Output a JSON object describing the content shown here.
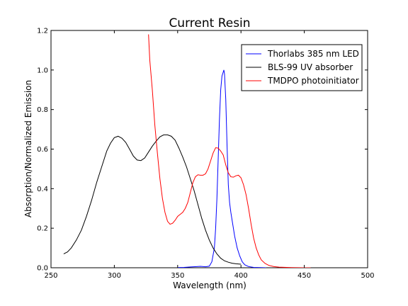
{
  "chart_data": {
    "type": "line",
    "title": "Current Resin",
    "xlabel": "Wavelength (nm)",
    "ylabel": "Absorption/Normalized Emission",
    "xlim": [
      250,
      500
    ],
    "ylim": [
      0,
      1.2
    ],
    "x_ticks": [
      250,
      300,
      350,
      400,
      450,
      500
    ],
    "y_ticks": [
      0.0,
      0.2,
      0.4,
      0.6,
      0.8,
      1.0,
      1.2
    ],
    "x_tick_labels": [
      "250",
      "300",
      "350",
      "400",
      "450",
      "500"
    ],
    "y_tick_labels": [
      "0.0",
      "0.2",
      "0.4",
      "0.6",
      "0.8",
      "1.0",
      "1.2"
    ],
    "grid": false,
    "legend_position": "top-right",
    "series": [
      {
        "name": "Thorlabs 385 nm LED",
        "color": "#0000ff",
        "points": [
          [
            350,
            0.001
          ],
          [
            355,
            0.002
          ],
          [
            360,
            0.004
          ],
          [
            365,
            0.006
          ],
          [
            368,
            0.007
          ],
          [
            372,
            0.005
          ],
          [
            375,
            0.008
          ],
          [
            377,
            0.03
          ],
          [
            379,
            0.1
          ],
          [
            380,
            0.2
          ],
          [
            381,
            0.35
          ],
          [
            382,
            0.55
          ],
          [
            383,
            0.75
          ],
          [
            384,
            0.9
          ],
          [
            385,
            0.97
          ],
          [
            386,
            0.99
          ],
          [
            386.5,
            1.0
          ],
          [
            387,
            0.98
          ],
          [
            388,
            0.85
          ],
          [
            389,
            0.62
          ],
          [
            390,
            0.42
          ],
          [
            391,
            0.33
          ],
          [
            392,
            0.28
          ],
          [
            393,
            0.24
          ],
          [
            395,
            0.16
          ],
          [
            397,
            0.1
          ],
          [
            399,
            0.06
          ],
          [
            401,
            0.03
          ],
          [
            403,
            0.015
          ],
          [
            406,
            0.006
          ],
          [
            410,
            0.002
          ],
          [
            415,
            0.001
          ],
          [
            420,
            0.0
          ]
        ]
      },
      {
        "name": "BLS-99 UV absorber",
        "color": "#000000",
        "points": [
          [
            260,
            0.07
          ],
          [
            263,
            0.08
          ],
          [
            266,
            0.1
          ],
          [
            270,
            0.14
          ],
          [
            274,
            0.19
          ],
          [
            278,
            0.26
          ],
          [
            282,
            0.34
          ],
          [
            286,
            0.43
          ],
          [
            290,
            0.51
          ],
          [
            294,
            0.59
          ],
          [
            297,
            0.63
          ],
          [
            300,
            0.658
          ],
          [
            303,
            0.665
          ],
          [
            306,
            0.655
          ],
          [
            309,
            0.634
          ],
          [
            312,
            0.6
          ],
          [
            315,
            0.565
          ],
          [
            318,
            0.545
          ],
          [
            321,
            0.542
          ],
          [
            324,
            0.555
          ],
          [
            327,
            0.585
          ],
          [
            330,
            0.615
          ],
          [
            333,
            0.64
          ],
          [
            336,
            0.662
          ],
          [
            339,
            0.672
          ],
          [
            342,
            0.672
          ],
          [
            345,
            0.665
          ],
          [
            348,
            0.645
          ],
          [
            351,
            0.605
          ],
          [
            354,
            0.56
          ],
          [
            357,
            0.51
          ],
          [
            360,
            0.45
          ],
          [
            363,
            0.39
          ],
          [
            366,
            0.32
          ],
          [
            369,
            0.25
          ],
          [
            372,
            0.19
          ],
          [
            375,
            0.14
          ],
          [
            378,
            0.1
          ],
          [
            381,
            0.07
          ],
          [
            384,
            0.048
          ],
          [
            387,
            0.035
          ],
          [
            390,
            0.028
          ],
          [
            393,
            0.023
          ],
          [
            396,
            0.02
          ],
          [
            400,
            0.018
          ]
        ]
      },
      {
        "name": "TMDPO photoinitiator",
        "color": "#ff0000",
        "points": [
          [
            327,
            1.18
          ],
          [
            328,
            1.05
          ],
          [
            330,
            0.9
          ],
          [
            332,
            0.72
          ],
          [
            334,
            0.58
          ],
          [
            336,
            0.45
          ],
          [
            338,
            0.35
          ],
          [
            340,
            0.28
          ],
          [
            342,
            0.235
          ],
          [
            344,
            0.22
          ],
          [
            346,
            0.225
          ],
          [
            348,
            0.24
          ],
          [
            350,
            0.26
          ],
          [
            352,
            0.27
          ],
          [
            354,
            0.28
          ],
          [
            356,
            0.3
          ],
          [
            358,
            0.33
          ],
          [
            360,
            0.38
          ],
          [
            362,
            0.43
          ],
          [
            364,
            0.46
          ],
          [
            366,
            0.47
          ],
          [
            368,
            0.468
          ],
          [
            370,
            0.468
          ],
          [
            372,
            0.475
          ],
          [
            374,
            0.5
          ],
          [
            376,
            0.54
          ],
          [
            378,
            0.58
          ],
          [
            380,
            0.607
          ],
          [
            382,
            0.605
          ],
          [
            384,
            0.59
          ],
          [
            386,
            0.57
          ],
          [
            388,
            0.52
          ],
          [
            390,
            0.48
          ],
          [
            392,
            0.46
          ],
          [
            394,
            0.458
          ],
          [
            396,
            0.465
          ],
          [
            398,
            0.468
          ],
          [
            400,
            0.455
          ],
          [
            402,
            0.42
          ],
          [
            404,
            0.37
          ],
          [
            406,
            0.3
          ],
          [
            408,
            0.22
          ],
          [
            410,
            0.15
          ],
          [
            412,
            0.1
          ],
          [
            414,
            0.065
          ],
          [
            416,
            0.04
          ],
          [
            419,
            0.022
          ],
          [
            422,
            0.012
          ],
          [
            426,
            0.006
          ],
          [
            430,
            0.003
          ],
          [
            440,
            0.001
          ],
          [
            450,
            0.0
          ],
          [
            455,
            0.0
          ]
        ]
      }
    ]
  }
}
